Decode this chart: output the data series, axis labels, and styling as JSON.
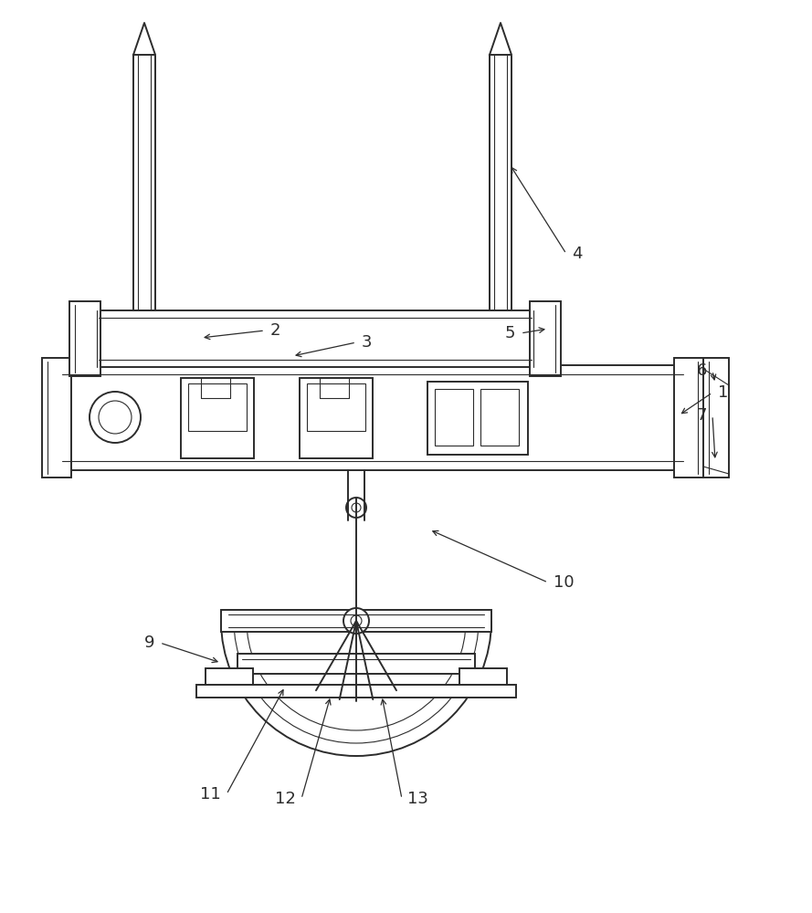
{
  "bg_color": "#ffffff",
  "line_color": "#2c2c2c",
  "line_width": 1.4,
  "thin_lw": 0.8,
  "fig_w": 8.89,
  "fig_h": 10.0,
  "dpi": 100
}
